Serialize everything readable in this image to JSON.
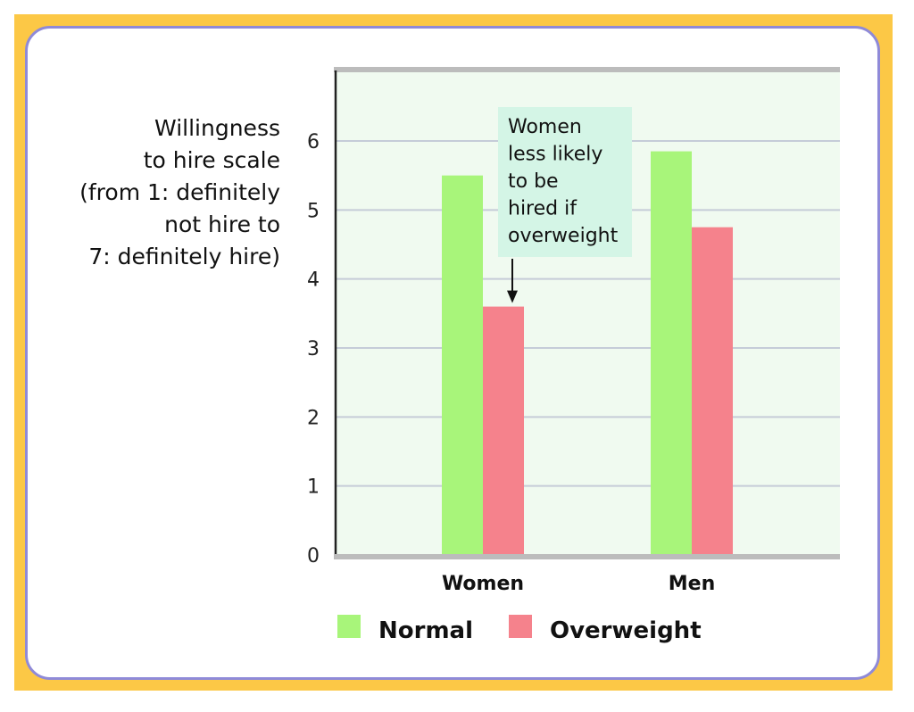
{
  "chart_data": {
    "type": "bar",
    "ylabel_lines": [
      "Willingness",
      "to hire scale",
      "(from 1: definitely",
      "not hire to",
      "7: definitely hire)"
    ],
    "categories": [
      "Women",
      "Men"
    ],
    "series": [
      {
        "name": "Normal",
        "values": [
          5.5,
          5.85
        ],
        "color": "#a8f57a"
      },
      {
        "name": "Overweight",
        "values": [
          3.6,
          4.75
        ],
        "color": "#f5828c"
      }
    ],
    "ylim": [
      0,
      7
    ],
    "yticks": [
      0,
      1,
      2,
      3,
      4,
      5,
      6
    ],
    "grid": true,
    "legend_position": "bottom",
    "annotation": {
      "lines": [
        "Women",
        "less likely",
        "to be",
        "hired if",
        "overweight"
      ],
      "points_to": {
        "category": "Women",
        "series": "Overweight"
      }
    }
  },
  "colors": {
    "frame": "#fcc846",
    "card_border": "#8f8ad8",
    "plot_bg": "#f0faf0",
    "grid": "#c5ccd8",
    "axis": "#222222",
    "annotation_bg": "#d4f5e6"
  }
}
